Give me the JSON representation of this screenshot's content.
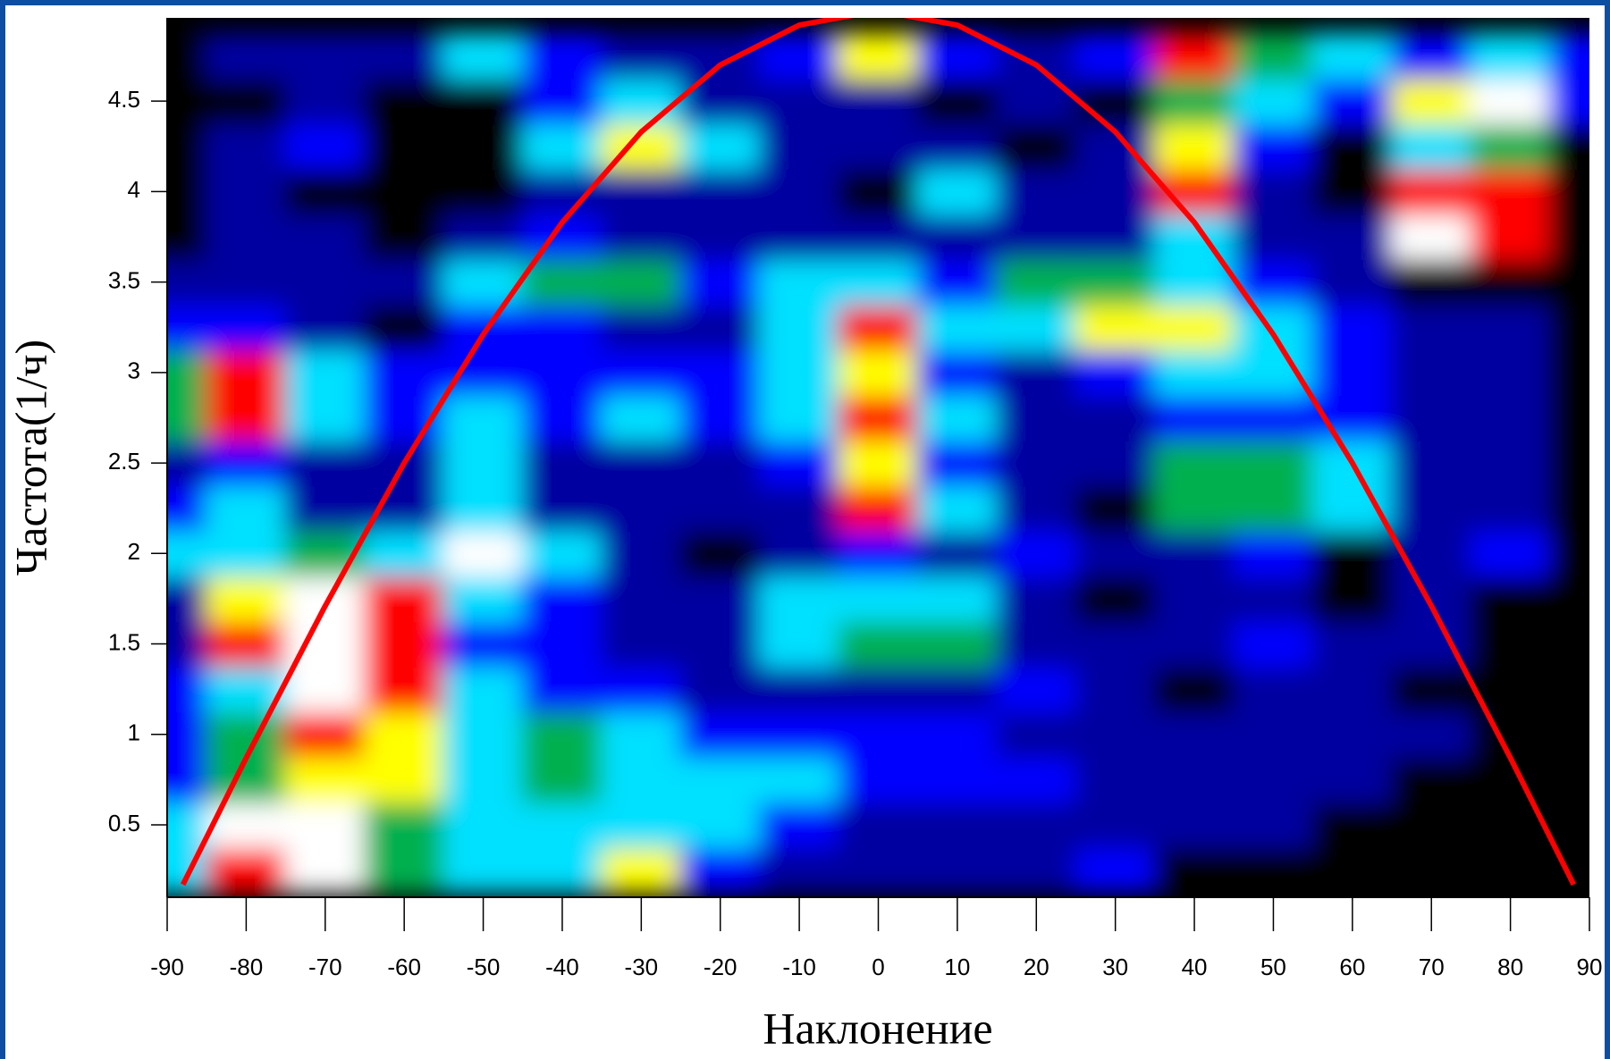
{
  "chart_data": {
    "type": "heatmap",
    "x_label": "Наклонение",
    "y_label": "Частота(1/ч)",
    "xlim": [
      -90,
      90
    ],
    "ylim": [
      0.1,
      4.96
    ],
    "xticks": [
      -90,
      -80,
      -70,
      -60,
      -50,
      -40,
      -30,
      -20,
      -10,
      0,
      10,
      20,
      30,
      40,
      50,
      60,
      70,
      80,
      90
    ],
    "yticks": [
      0.5,
      1,
      1.5,
      2,
      2.5,
      3,
      3.5,
      4,
      4.5
    ],
    "colorscale": [
      "#000000",
      "#0000a0",
      "#0000ff",
      "#00e0ff",
      "#00b050",
      "#ffff00",
      "#ff0000",
      "#ffffff"
    ],
    "x": [
      -90,
      -80,
      -70,
      -60,
      -50,
      -40,
      -30,
      -20,
      -10,
      0,
      10,
      20,
      30,
      40,
      50,
      60,
      70,
      80,
      90
    ],
    "y": [
      0.25,
      0.5,
      0.75,
      1,
      1.25,
      1.5,
      1.75,
      2,
      2.25,
      2.5,
      2.75,
      3,
      3.25,
      3.5,
      3.75,
      4,
      4.25,
      4.5,
      4.75
    ],
    "z": [
      [
        3,
        6,
        7,
        4,
        3,
        3,
        5,
        2,
        1,
        1,
        1,
        1,
        2,
        0,
        0,
        0,
        0,
        0,
        0
      ],
      [
        3,
        7,
        7,
        4,
        3,
        3,
        3,
        3,
        2,
        1,
        1,
        1,
        1,
        1,
        1,
        0,
        0,
        0,
        0
      ],
      [
        2,
        4,
        5,
        5,
        3,
        4,
        3,
        3,
        3,
        2,
        2,
        2,
        1,
        1,
        1,
        1,
        0,
        0,
        0
      ],
      [
        2,
        4,
        6,
        5,
        3,
        4,
        3,
        2,
        2,
        2,
        2,
        1,
        1,
        1,
        1,
        1,
        1,
        0,
        0
      ],
      [
        2,
        3,
        7,
        6,
        3,
        2,
        2,
        1,
        1,
        1,
        1,
        2,
        1,
        0,
        1,
        1,
        0,
        0,
        0
      ],
      [
        1,
        6,
        7,
        6,
        2,
        2,
        1,
        1,
        3,
        4,
        4,
        1,
        1,
        1,
        2,
        1,
        1,
        0,
        0
      ],
      [
        1,
        5,
        7,
        6,
        3,
        2,
        1,
        1,
        3,
        3,
        3,
        1,
        0,
        1,
        1,
        0,
        1,
        0,
        0
      ],
      [
        3,
        3,
        4,
        3,
        7,
        3,
        1,
        0,
        1,
        2,
        1,
        2,
        1,
        1,
        2,
        0,
        1,
        2,
        0
      ],
      [
        2,
        3,
        1,
        1,
        3,
        1,
        1,
        1,
        1,
        6,
        3,
        1,
        0,
        4,
        4,
        3,
        1,
        1,
        0
      ],
      [
        1,
        2,
        1,
        1,
        3,
        1,
        1,
        1,
        2,
        5,
        2,
        1,
        1,
        4,
        4,
        3,
        1,
        1,
        0
      ],
      [
        4,
        6,
        3,
        2,
        3,
        2,
        3,
        2,
        3,
        6,
        3,
        1,
        1,
        2,
        2,
        2,
        1,
        1,
        0
      ],
      [
        4,
        6,
        3,
        2,
        2,
        2,
        2,
        2,
        3,
        5,
        2,
        1,
        2,
        3,
        3,
        2,
        1,
        1,
        0
      ],
      [
        2,
        2,
        1,
        0,
        2,
        2,
        1,
        1,
        3,
        6,
        3,
        3,
        5,
        5,
        3,
        2,
        1,
        1,
        0
      ],
      [
        1,
        1,
        1,
        1,
        3,
        4,
        4,
        2,
        3,
        3,
        2,
        4,
        4,
        3,
        2,
        1,
        0,
        0,
        0
      ],
      [
        0,
        1,
        1,
        0,
        1,
        2,
        1,
        1,
        1,
        1,
        1,
        1,
        1,
        3,
        1,
        1,
        7,
        6,
        0
      ],
      [
        0,
        1,
        0,
        0,
        0,
        1,
        1,
        1,
        1,
        0,
        3,
        1,
        1,
        6,
        1,
        0,
        6,
        6,
        0
      ],
      [
        0,
        1,
        2,
        0,
        0,
        3,
        5,
        3,
        1,
        1,
        1,
        0,
        1,
        5,
        2,
        0,
        3,
        4,
        0
      ],
      [
        0,
        0,
        1,
        0,
        0,
        2,
        3,
        1,
        1,
        1,
        0,
        1,
        0,
        4,
        3,
        2,
        5,
        7,
        2
      ],
      [
        0,
        1,
        1,
        1,
        3,
        2,
        1,
        1,
        2,
        5,
        2,
        1,
        2,
        6,
        4,
        3,
        2,
        3,
        2
      ]
    ],
    "series": [
      {
        "color": "#ff0000",
        "x": [
          -88,
          -80,
          -70,
          -60,
          -50,
          -40,
          -30,
          -20,
          -10,
          0,
          10,
          20,
          30,
          40,
          50,
          60,
          70,
          80,
          88
        ],
        "values": [
          0.17,
          0.87,
          1.71,
          2.5,
          3.21,
          3.83,
          4.33,
          4.7,
          4.92,
          5,
          4.92,
          4.7,
          4.33,
          3.83,
          3.21,
          2.5,
          1.71,
          0.87,
          0.17
        ]
      }
    ]
  }
}
